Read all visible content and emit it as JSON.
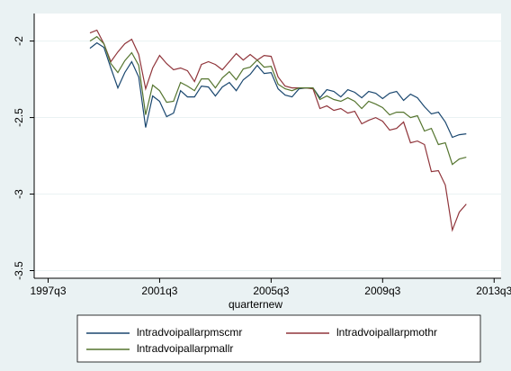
{
  "chart_data": {
    "type": "line",
    "x_label": "quarternew",
    "x": [
      "1999q1",
      "1999q2",
      "1999q3",
      "1999q4",
      "2000q1",
      "2000q2",
      "2000q3",
      "2000q4",
      "2001q1",
      "2001q2",
      "2001q3",
      "2001q4",
      "2002q1",
      "2002q2",
      "2002q3",
      "2002q4",
      "2003q1",
      "2003q2",
      "2003q3",
      "2003q4",
      "2004q1",
      "2004q2",
      "2004q3",
      "2004q4",
      "2005q1",
      "2005q2",
      "2005q3",
      "2005q4",
      "2006q1",
      "2006q2",
      "2006q3",
      "2006q4",
      "2007q1",
      "2007q2",
      "2007q3",
      "2007q4",
      "2008q1",
      "2008q2",
      "2008q3",
      "2008q4",
      "2009q1",
      "2009q2",
      "2009q3",
      "2009q4",
      "2010q1",
      "2010q2",
      "2010q3",
      "2010q4",
      "2011q1",
      "2011q2",
      "2011q3",
      "2011q4",
      "2012q1",
      "2012q2",
      "2012q3"
    ],
    "series": [
      {
        "name": "lntradvoipallarpmscmr",
        "color": "#1a476f",
        "values": [
          -2.047,
          -2.012,
          -2.041,
          -2.176,
          -2.306,
          -2.206,
          -2.135,
          -2.235,
          -2.565,
          -2.359,
          -2.394,
          -2.494,
          -2.471,
          -2.324,
          -2.365,
          -2.365,
          -2.294,
          -2.3,
          -2.359,
          -2.3,
          -2.271,
          -2.324,
          -2.253,
          -2.218,
          -2.159,
          -2.212,
          -2.206,
          -2.312,
          -2.353,
          -2.365,
          -2.312,
          -2.306,
          -2.306,
          -2.371,
          -2.318,
          -2.329,
          -2.365,
          -2.318,
          -2.335,
          -2.371,
          -2.329,
          -2.341,
          -2.376,
          -2.341,
          -2.329,
          -2.388,
          -2.347,
          -2.371,
          -2.429,
          -2.476,
          -2.465,
          -2.529,
          -2.629,
          -2.612,
          -2.606
        ]
      },
      {
        "name": "lntradvoipallarpmothr",
        "color": "#90353b",
        "values": [
          -1.947,
          -1.929,
          -2.018,
          -2.135,
          -2.071,
          -2.018,
          -1.988,
          -2.088,
          -2.312,
          -2.176,
          -2.094,
          -2.147,
          -2.188,
          -2.176,
          -2.194,
          -2.265,
          -2.153,
          -2.135,
          -2.153,
          -2.188,
          -2.135,
          -2.082,
          -2.124,
          -2.088,
          -2.124,
          -2.094,
          -2.1,
          -2.235,
          -2.294,
          -2.306,
          -2.306,
          -2.306,
          -2.312,
          -2.441,
          -2.424,
          -2.453,
          -2.441,
          -2.471,
          -2.459,
          -2.541,
          -2.518,
          -2.5,
          -2.524,
          -2.582,
          -2.571,
          -2.529,
          -2.665,
          -2.653,
          -2.676,
          -2.853,
          -2.847,
          -2.941,
          -3.235,
          -3.118,
          -3.065
        ]
      },
      {
        "name": "lntradvoipallarpmallr",
        "color": "#55752f",
        "values": [
          -2.0,
          -1.971,
          -2.018,
          -2.147,
          -2.206,
          -2.129,
          -2.076,
          -2.159,
          -2.482,
          -2.288,
          -2.324,
          -2.4,
          -2.394,
          -2.271,
          -2.294,
          -2.324,
          -2.247,
          -2.247,
          -2.306,
          -2.241,
          -2.2,
          -2.253,
          -2.182,
          -2.171,
          -2.124,
          -2.171,
          -2.165,
          -2.282,
          -2.312,
          -2.324,
          -2.306,
          -2.306,
          -2.306,
          -2.382,
          -2.359,
          -2.382,
          -2.394,
          -2.371,
          -2.394,
          -2.441,
          -2.394,
          -2.412,
          -2.435,
          -2.482,
          -2.465,
          -2.465,
          -2.5,
          -2.488,
          -2.588,
          -2.571,
          -2.676,
          -2.665,
          -2.806,
          -2.771,
          -2.759
        ]
      }
    ],
    "xlim": [
      "1997q1",
      "2013q4"
    ],
    "xticks": [
      "1997q3",
      "2001q3",
      "2005q3",
      "2009q3",
      "2013q3"
    ],
    "ylim": [
      -3.55,
      -1.82
    ],
    "yticks": [
      -2,
      -2.5,
      -3,
      -3.5
    ],
    "grid": true
  }
}
